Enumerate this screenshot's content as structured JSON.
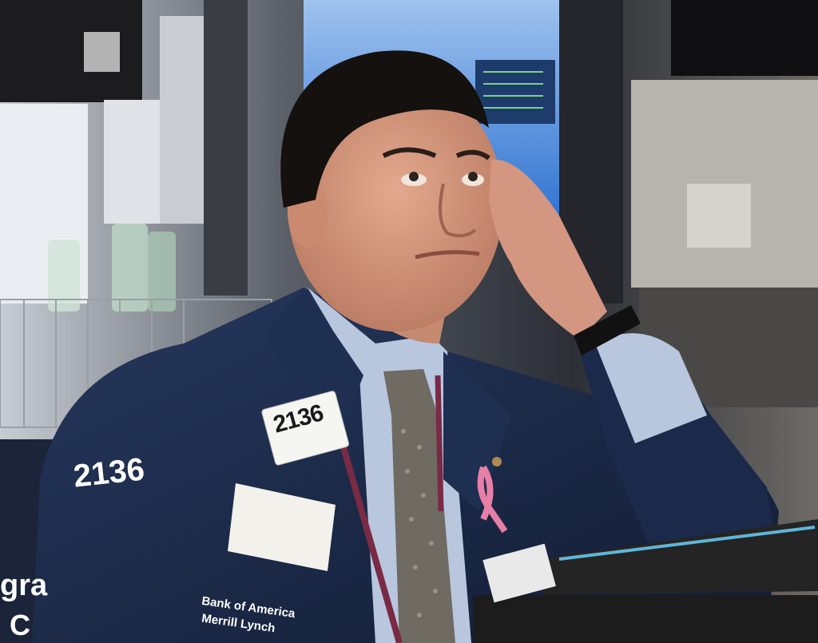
{
  "photo": {
    "badge_number": "2136",
    "sleeve_number": "2136",
    "pocket_logo_line1": "Bank of America",
    "pocket_logo_line2": "Merrill Lynch",
    "background_partial_text_1": "gra",
    "background_partial_text_2": "C"
  },
  "colors": {
    "jacket": "#1b2a4a",
    "shirt": "#b8c6de",
    "skin": "#d79a80",
    "hair": "#15110f",
    "tie": "#6f6a62",
    "ribbon": "#e77fa6",
    "screen": "#2a6fd0"
  }
}
